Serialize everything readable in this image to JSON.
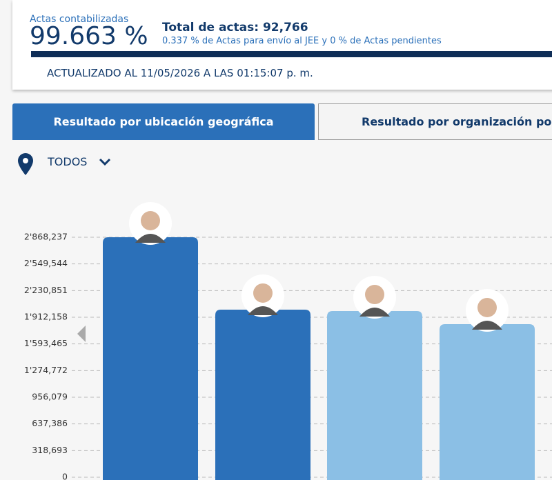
{
  "header": {
    "counted_label": "Actas contabilizadas",
    "counted_percent": "99.663 %",
    "total": "Total de actas: 92,766",
    "pending": "0.337 % de Actas para envío al JEE y 0 % de Actas pendientes",
    "updated": "ACTUALIZADO AL 11/05/2026 A LAS 01:15:07 p. m."
  },
  "tabs": [
    "Resultado por ubicación geográfica",
    "Resultado por organización política"
  ],
  "filter": "TODOS",
  "chart_data": {
    "type": "bar",
    "categories": [
      null,
      null,
      null,
      null
    ],
    "values": [
      2868237,
      2003000,
      1986000,
      1830000
    ],
    "colors": [
      "#2b70b9",
      "#2b70b9",
      "#8bbfe5",
      "#8bbfe5"
    ],
    "ylim": [
      0,
      2868237
    ],
    "yticks": [
      0,
      {
        "value": 318693,
        "label": "318,693"
      },
      {
        "value": 637386,
        "label": "637,386"
      },
      {
        "value": 956079,
        "label": "956,079"
      },
      {
        "value": 1274772,
        "label": "1'274,772"
      },
      {
        "value": 1593465,
        "label": "1'593,465"
      },
      {
        "value": 1912158,
        "label": "1'912,158"
      },
      {
        "value": 2230851,
        "label": "2'230,851"
      },
      {
        "value": 2549544,
        "label": "2'549,544"
      },
      {
        "value": 2868237,
        "label": "2'868,237"
      }
    ],
    "grid": true
  }
}
